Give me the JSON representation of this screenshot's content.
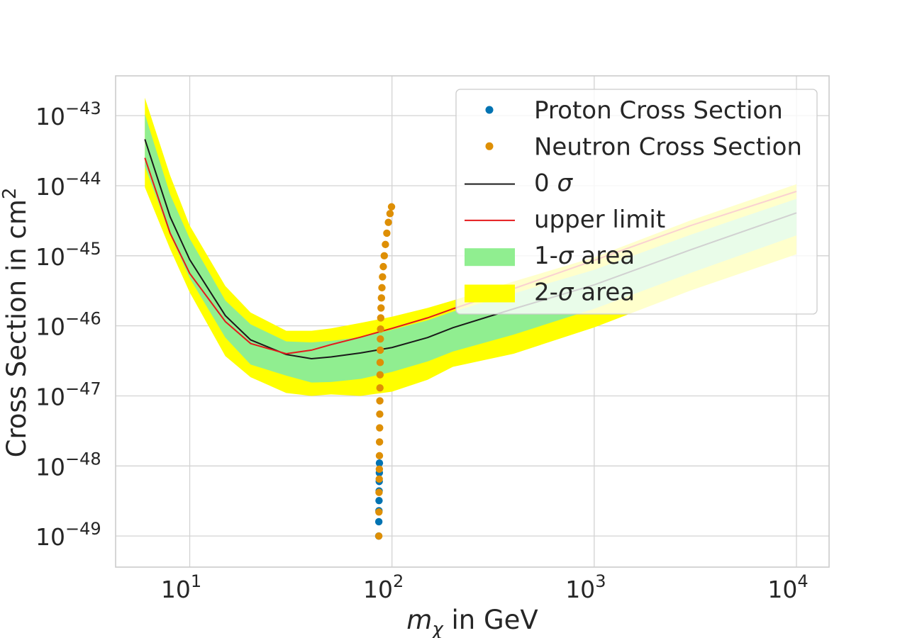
{
  "chart_data": {
    "type": "line",
    "xscale": "log",
    "yscale": "log",
    "xlim": [
      4.3,
      14500
    ],
    "ylim": [
      3.6e-50,
      3.7e-43
    ],
    "xlabel": {
      "pre": "m",
      "sub": "χ",
      "post": " in GeV"
    },
    "ylabel": {
      "text": "Cross Section in cm",
      "sup": "2"
    },
    "grid": true,
    "legend_position": "top-right",
    "x_ticks": [
      {
        "value": 10,
        "base": "10",
        "exp": "1"
      },
      {
        "value": 100,
        "base": "10",
        "exp": "2"
      },
      {
        "value": 1000,
        "base": "10",
        "exp": "3"
      },
      {
        "value": 10000,
        "base": "10",
        "exp": "4"
      }
    ],
    "y_ticks": [
      {
        "value": 1e-43,
        "base": "10",
        "exp": "−43"
      },
      {
        "value": 1e-44,
        "base": "10",
        "exp": "−44"
      },
      {
        "value": 1e-45,
        "base": "10",
        "exp": "−45"
      },
      {
        "value": 1e-46,
        "base": "10",
        "exp": "−46"
      },
      {
        "value": 1e-47,
        "base": "10",
        "exp": "−47"
      },
      {
        "value": 1e-48,
        "base": "10",
        "exp": "−48"
      },
      {
        "value": 1e-49,
        "base": "10",
        "exp": "−49"
      }
    ],
    "mass_grid": [
      6,
      8,
      10,
      15,
      20,
      30,
      40,
      50,
      70,
      100,
      150,
      200,
      400,
      1000,
      3000,
      10000
    ],
    "series": [
      {
        "name": "0 σ",
        "kind": "line",
        "color": "#1a1a1a",
        "values": [
          4.6e-44,
          3.6e-45,
          8.8e-46,
          1.4e-46,
          6.3e-47,
          3.9e-47,
          3.4e-47,
          3.6e-47,
          4.1e-47,
          4.9e-47,
          6.8e-47,
          9.4e-47,
          1.75e-46,
          3.85e-46,
          1.22e-45,
          4.1e-45
        ]
      },
      {
        "name": "upper limit",
        "kind": "line",
        "color": "#e41a1c",
        "values": [
          2.5e-44,
          2.1e-45,
          5.6e-46,
          1.15e-46,
          5.6e-47,
          4e-47,
          4.5e-47,
          5.4e-47,
          6.9e-47,
          9.2e-47,
          1.3e-46,
          1.75e-46,
          3.4e-46,
          8.6e-46,
          2.7e-45,
          8.3e-45
        ]
      }
    ],
    "bands": [
      {
        "name": "2-σ area",
        "color": "#ffff00",
        "lower": [
          9.5e-45,
          1.25e-45,
          3e-46,
          3.7e-47,
          1.85e-47,
          1.1e-47,
          1e-47,
          1.05e-47,
          1e-47,
          1.15e-47,
          1.7e-47,
          2.6e-47,
          4e-47,
          9.5e-47,
          3.2e-46,
          1.05e-45
        ],
        "upper": [
          1.8e-43,
          1.4e-44,
          2.7e-45,
          3.7e-46,
          1.55e-46,
          8.5e-47,
          8.5e-47,
          9.2e-47,
          1.1e-46,
          1.35e-46,
          1.8e-46,
          2.3e-46,
          4.3e-46,
          9.5e-46,
          3.2e-45,
          1.05e-44
        ]
      },
      {
        "name": "1-σ area",
        "color": "#90ee90",
        "lower": [
          1.9e-44,
          2e-45,
          4.8e-46,
          6.8e-47,
          2.8e-47,
          1.95e-47,
          1.55e-47,
          1.58e-47,
          1.75e-47,
          2.2e-47,
          3.1e-47,
          4.3e-47,
          7.5e-47,
          1.75e-46,
          5.7e-46,
          1.95e-45
        ],
        "upper": [
          1.05e-43,
          7.5e-45,
          1.75e-45,
          2.3e-46,
          1.05e-46,
          6e-47,
          5.8e-47,
          6.1e-47,
          6.9e-47,
          8.8e-47,
          1.2e-46,
          1.6e-46,
          2.9e-46,
          6.3e-46,
          2e-45,
          6.5e-45
        ]
      }
    ],
    "scatter_series": [
      {
        "name": "Proton Cross Section",
        "color": "#0173b2",
        "points": [
          [
            86,
            1e-49
          ],
          [
            86.1,
            1.6e-49
          ],
          [
            86.2,
            2.3e-49
          ],
          [
            86.3,
            3.2e-49
          ],
          [
            86.4,
            4.4e-49
          ],
          [
            86.5,
            6e-49
          ],
          [
            86.6,
            8e-49
          ],
          [
            86.7,
            1.1e-48
          ]
        ]
      },
      {
        "name": "Neutron Cross Section",
        "color": "#de8f05",
        "points": [
          [
            86.1,
            1e-49
          ],
          [
            86.2,
            2.2e-49
          ],
          [
            86.3,
            4.2e-49
          ],
          [
            86.5,
            6.5e-49
          ],
          [
            86.6,
            9e-49
          ],
          [
            86.7,
            1.4e-48
          ],
          [
            86.8,
            2.2e-48
          ],
          [
            86.9,
            3.5e-48
          ],
          [
            87.0,
            5.5e-48
          ],
          [
            87.1,
            8.5e-48
          ],
          [
            87.2,
            1.3e-47
          ],
          [
            87.3,
            2e-47
          ],
          [
            87.4,
            3e-47
          ],
          [
            87.5,
            4.5e-47
          ],
          [
            87.6,
            6.5e-47
          ],
          [
            87.8,
            9e-47
          ],
          [
            88.0,
            1.3e-46
          ],
          [
            88.3,
            1.8e-46
          ],
          [
            88.7,
            2.5e-46
          ],
          [
            89.2,
            3.5e-46
          ],
          [
            89.8,
            5e-46
          ],
          [
            90.6,
            7e-46
          ],
          [
            91.6,
            1e-45
          ],
          [
            92.8,
            1.45e-45
          ],
          [
            94.3,
            2.1e-45
          ],
          [
            96.0,
            3e-45
          ],
          [
            97.8,
            4e-45
          ],
          [
            99.5,
            5e-45
          ]
        ]
      }
    ],
    "legend": [
      {
        "label": "Proton Cross Section",
        "kind": "marker",
        "color": "#0173b2"
      },
      {
        "label": "Neutron Cross Section",
        "kind": "marker",
        "color": "#de8f05"
      },
      {
        "label": "0 σ",
        "kind": "line",
        "color": "#1a1a1a"
      },
      {
        "label": "upper limit",
        "kind": "line",
        "color": "#e41a1c"
      },
      {
        "label": "1-σ area",
        "kind": "patch",
        "color": "#90ee90"
      },
      {
        "label": "2-σ area",
        "kind": "patch",
        "color": "#ffff00"
      }
    ]
  }
}
